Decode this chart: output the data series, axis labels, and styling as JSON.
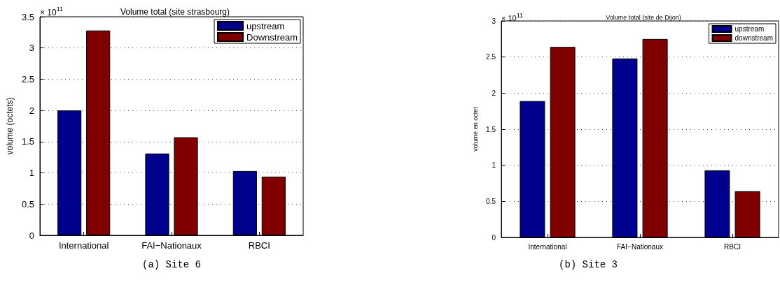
{
  "chart_data": [
    {
      "type": "bar",
      "title": "Volume total (site strasbourg)",
      "ylabel": "volume (octets)",
      "categories": [
        "International",
        "FAI−Nationaux",
        "RBCI"
      ],
      "series": [
        {
          "name": "upstream",
          "color": "#00008f",
          "values": [
            2.0,
            1.31,
            1.03
          ]
        },
        {
          "name": "Downstream",
          "color": "#800000",
          "values": [
            3.28,
            1.57,
            0.94
          ]
        }
      ],
      "ylim": [
        0,
        3.5
      ],
      "yticks": [
        0,
        0.5,
        1,
        1.5,
        2,
        2.5,
        3,
        3.5
      ],
      "grid": "y",
      "legend": "top right",
      "annotations": [
        "× 10$^{11}$",
        "(a) Site 6"
      ]
    },
    {
      "type": "bar",
      "title": "Volume total (site de Dijon)",
      "ylabel": "volume en octet",
      "categories": [
        "International",
        "FAI−Nationaux",
        "RBCI"
      ],
      "series": [
        {
          "name": "upstream",
          "color": "#00008f",
          "values": [
            1.89,
            2.48,
            0.93
          ]
        },
        {
          "name": "downstream",
          "color": "#800000",
          "values": [
            2.64,
            2.75,
            0.64
          ]
        }
      ],
      "ylim": [
        0,
        3
      ],
      "yticks": [
        0,
        0.5,
        1,
        1.5,
        2,
        2.5,
        3
      ],
      "grid": "y",
      "legend": "top right",
      "annotations": [
        "× 10$^{11}$",
        "(b) Site 3"
      ]
    }
  ]
}
